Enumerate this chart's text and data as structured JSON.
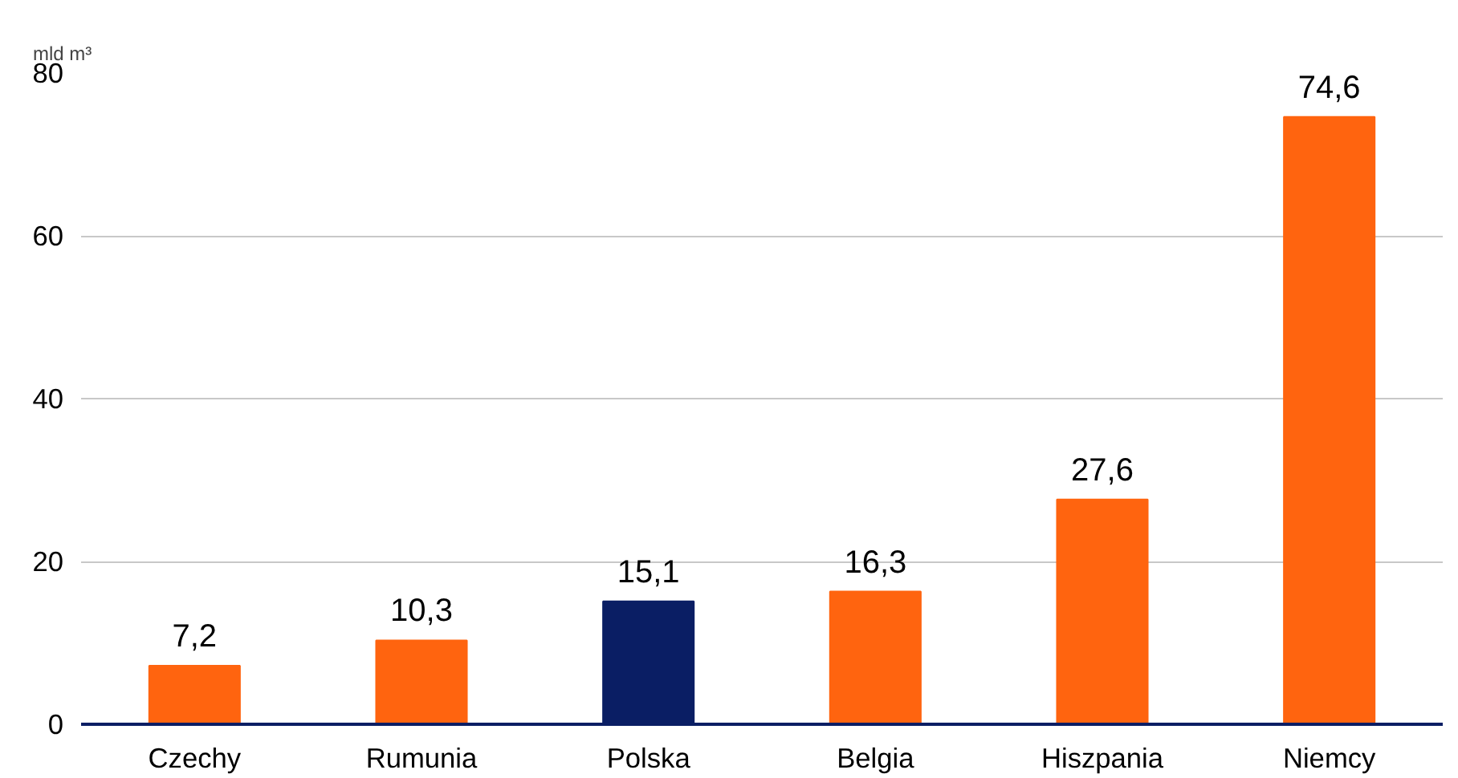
{
  "chart_data": {
    "type": "bar",
    "ylabel": "mld m³",
    "categories": [
      "Czechy",
      "Rumunia",
      "Polska",
      "Belgia",
      "Hiszpania",
      "Niemcy"
    ],
    "values": [
      7.2,
      10.3,
      15.1,
      16.3,
      27.6,
      74.6
    ],
    "value_labels": [
      "7,2",
      "10,3",
      "15,1",
      "16,3",
      "27,6",
      "74,6"
    ],
    "colors": [
      "#ff640f",
      "#ff640f",
      "#0a1e64",
      "#ff640f",
      "#ff640f",
      "#ff640f"
    ],
    "ylim": [
      0,
      80
    ],
    "yticks": [
      0,
      20,
      40,
      60,
      80
    ],
    "grid": "y"
  }
}
